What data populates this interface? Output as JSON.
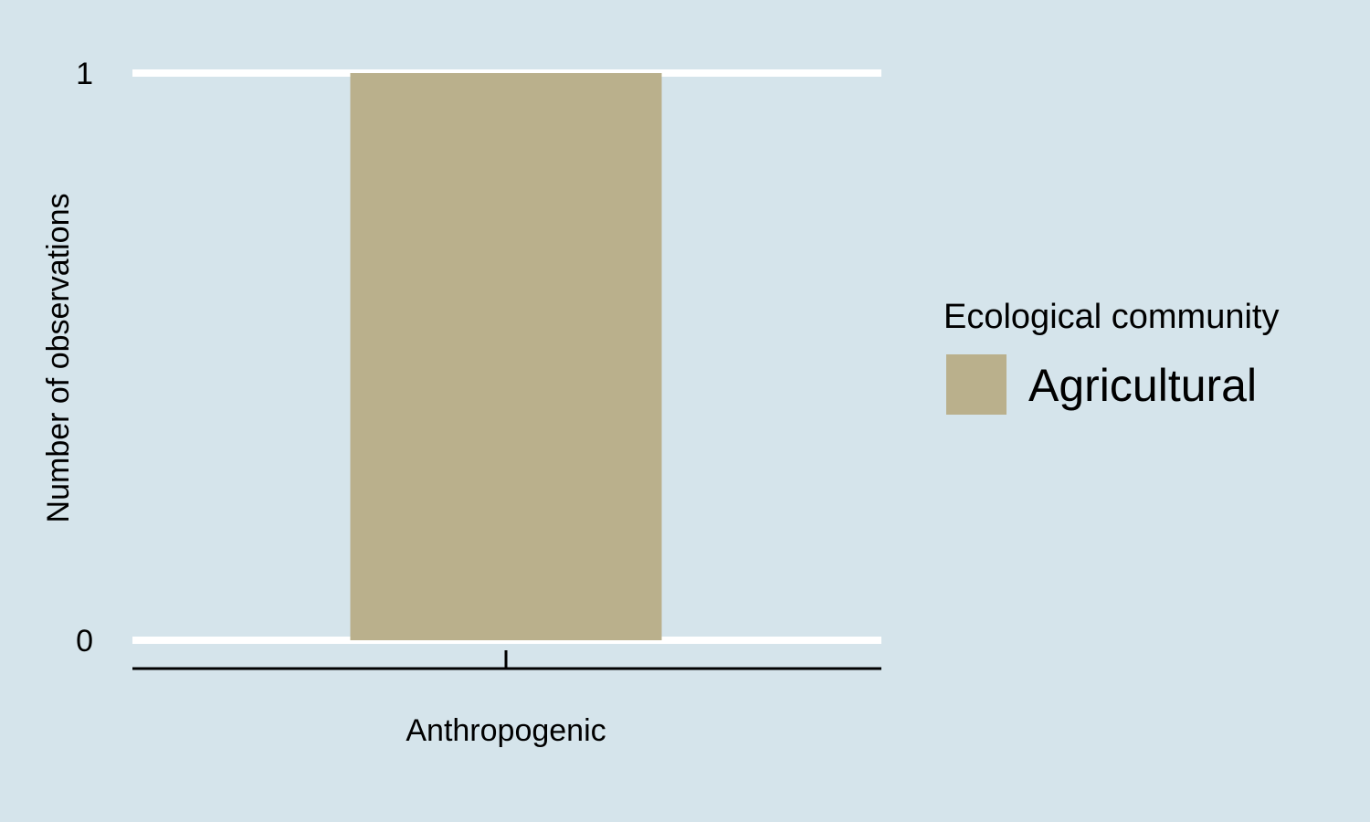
{
  "chart_data": {
    "type": "bar",
    "categories": [
      "Anthropogenic"
    ],
    "series": [
      {
        "name": "Agricultural",
        "values": [
          1
        ],
        "color": "#bab08c"
      }
    ],
    "xlabel": "",
    "ylabel": "Number of observations",
    "ylim": [
      0,
      1
    ],
    "yticks": [
      "0",
      "1"
    ],
    "grid": true,
    "legend": {
      "title": "Ecological community",
      "placement": "right"
    },
    "background_color": "#d5e4eb"
  }
}
